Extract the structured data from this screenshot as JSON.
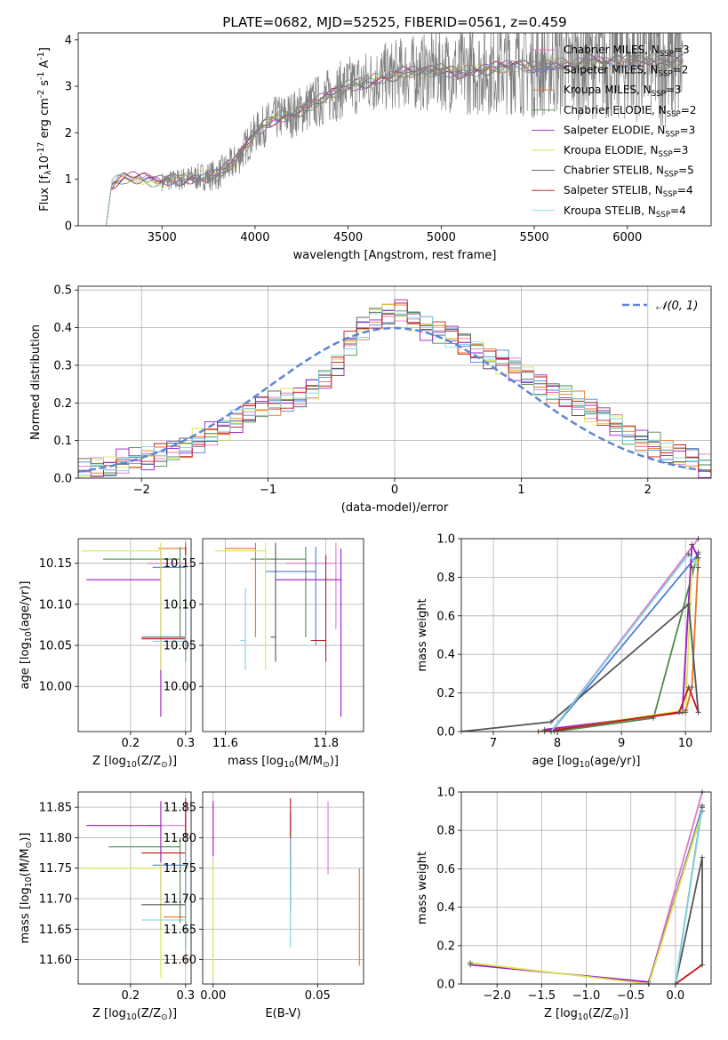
{
  "figure_title": "PLATE=0682, MJD=52525, FIBERID=0561, z=0.459",
  "colors": {
    "chabrier_miles": "#e377c2",
    "salpeter_miles": "#4f7bd6",
    "kroupa_miles": "#e8761f",
    "chabrier_elodie": "#4e8a4e",
    "salpeter_elodie": "#9b19c9",
    "kroupa_elodie": "#d8e84a",
    "chabrier_stelib": "#555555",
    "salpeter_stelib": "#c4161c",
    "kroupa_stelib": "#7fd3e6",
    "data": "#808080",
    "gaussian": "#5b86d6"
  },
  "chart_data": [
    {
      "type": "line",
      "id": "spectrum",
      "xlabel": "wavelength [Angstrom, rest frame]",
      "ylabel": "Flux [f$_\\lambda$10$^{-17}$ erg cm$^{-2}$ s$^{-1}$ A$^{-1}$]",
      "xlim": [
        3050,
        6450
      ],
      "ylim": [
        0,
        4.15
      ],
      "xticks": [
        3500,
        4000,
        4500,
        5000,
        5500,
        6000
      ],
      "yticks": [
        0,
        1,
        2,
        3,
        4
      ],
      "legend_position": "top-right",
      "legend": [
        "Chabrier MILES, N$_{SSP}$=3",
        "Salpeter MILES, N$_{SSP}$=2",
        "Kroupa MILES, N$_{SSP}$=3",
        "Chabrier ELODIE, N$_{SSP}$=2",
        "Salpeter ELODIE, N$_{SSP}$=3",
        "Kroupa ELODIE, N$_{SSP}$=3",
        "Chabrier STELIB, N$_{SSP}$=5",
        "Salpeter STELIB, N$_{SSP}$=4",
        "Kroupa STELIB, N$_{SSP}$=4"
      ],
      "model_continuum": {
        "x": [
          3200,
          3230,
          3300,
          3400,
          3500,
          3600,
          3700,
          3800,
          3900,
          4000,
          4100,
          4200,
          4300,
          4400,
          4500,
          4600,
          4700,
          4800,
          4900,
          5000,
          5100,
          5200,
          5300,
          5400,
          5500,
          5600,
          5700,
          5800,
          5900,
          6000,
          6100,
          6200,
          6300
        ],
        "y": [
          0,
          0.9,
          1.05,
          1.0,
          0.95,
          1.0,
          1.05,
          1.1,
          1.4,
          2.0,
          2.3,
          2.4,
          2.6,
          2.8,
          3.0,
          3.1,
          3.2,
          3.3,
          3.3,
          3.35,
          3.3,
          3.35,
          3.4,
          3.45,
          3.4,
          3.5,
          3.45,
          3.55,
          3.5,
          3.55,
          3.6,
          3.5,
          3.55
        ]
      },
      "data_start_x": 3500
    },
    {
      "type": "bar",
      "id": "residuals",
      "xlabel": "(data-model)/error",
      "ylabel": "Normed distribution",
      "xlim": [
        -2.5,
        2.5
      ],
      "ylim": [
        0,
        0.51
      ],
      "xticks": [
        -2,
        -1,
        0,
        1,
        2
      ],
      "yticks": [
        0.0,
        0.1,
        0.2,
        0.3,
        0.4,
        0.5
      ],
      "legend_position": "top-right",
      "gaussian_label": "$\\mathcal{N}(0, 1)$",
      "bin_edges": [
        -2.5,
        -2.4,
        -2.3,
        -2.2,
        -2.1,
        -2.0,
        -1.9,
        -1.8,
        -1.7,
        -1.6,
        -1.5,
        -1.4,
        -1.3,
        -1.2,
        -1.1,
        -1.0,
        -0.9,
        -0.8,
        -0.7,
        -0.6,
        -0.5,
        -0.4,
        -0.3,
        -0.2,
        -0.1,
        0.0,
        0.1,
        0.2,
        0.3,
        0.4,
        0.5,
        0.6,
        0.7,
        0.8,
        0.9,
        1.0,
        1.1,
        1.2,
        1.3,
        1.4,
        1.5,
        1.6,
        1.7,
        1.8,
        1.9,
        2.0,
        2.1,
        2.2,
        2.3,
        2.4,
        2.5
      ],
      "histogram": [
        0.02,
        0.025,
        0.03,
        0.045,
        0.05,
        0.05,
        0.06,
        0.07,
        0.08,
        0.1,
        0.12,
        0.13,
        0.15,
        0.17,
        0.19,
        0.2,
        0.21,
        0.22,
        0.24,
        0.26,
        0.3,
        0.36,
        0.4,
        0.43,
        0.44,
        0.45,
        0.42,
        0.4,
        0.39,
        0.38,
        0.36,
        0.34,
        0.32,
        0.31,
        0.29,
        0.27,
        0.25,
        0.23,
        0.22,
        0.2,
        0.18,
        0.16,
        0.14,
        0.12,
        0.1,
        0.09,
        0.07,
        0.06,
        0.05,
        0.03
      ]
    },
    {
      "type": "scatter",
      "id": "z_vs_age",
      "xlabel": "Z [log$_{10}$($Z/Z_\\odot$)]",
      "ylabel": "age  [log$_{10}$($age/yr$)]",
      "xlim": [
        0.105,
        0.31
      ],
      "ylim": [
        9.945,
        10.18
      ],
      "xticks": [
        0.2,
        0.3
      ],
      "yticks": [
        10.0,
        10.05,
        10.1,
        10.15
      ],
      "points": [
        {
          "x": 0.3,
          "y": 10.15,
          "x_lo": 0.23,
          "y_lo": 10.07,
          "y_hi": 10.175,
          "model": "chabrier_miles"
        },
        {
          "x": 0.3,
          "y": 10.145,
          "x_lo": 0.24,
          "y_lo": 10.05,
          "y_hi": 10.175,
          "model": "salpeter_miles"
        },
        {
          "x": 0.3,
          "y": 10.168,
          "x_lo": 0.25,
          "y_lo": 10.06,
          "y_hi": 10.175,
          "model": "kroupa_miles"
        },
        {
          "x": 0.29,
          "y": 10.155,
          "x_lo": 0.15,
          "y_lo": 10.06,
          "y_hi": 10.17,
          "model": "chabrier_elodie"
        },
        {
          "x": 0.255,
          "y": 10.13,
          "x_lo": 0.12,
          "y_lo": 9.963,
          "y_hi": 10.168,
          "model": "salpeter_elodie"
        },
        {
          "x": 0.255,
          "y": 10.165,
          "x_lo": 0.11,
          "y_lo": 10.02,
          "y_hi": 10.175,
          "model": "kroupa_elodie"
        },
        {
          "x": 0.3,
          "y": 10.06,
          "x_lo": 0.22,
          "y_lo": 10.03,
          "y_hi": 10.16,
          "model": "chabrier_stelib"
        },
        {
          "x": 0.3,
          "y": 10.058,
          "x_lo": 0.22,
          "y_lo": 10.04,
          "y_hi": 10.17,
          "model": "salpeter_stelib"
        },
        {
          "x": 0.3,
          "y": 10.055,
          "x_lo": 0.24,
          "y_lo": 10.03,
          "y_hi": 10.16,
          "model": "kroupa_stelib"
        }
      ]
    },
    {
      "type": "scatter",
      "id": "mass_vs_age",
      "xlabel": "mass [log$_{10}$($M/M_\\odot$)]",
      "ylabel": "",
      "xlim": [
        11.555,
        11.875
      ],
      "ylim": [
        9.945,
        10.18
      ],
      "xticks": [
        11.6,
        11.8
      ],
      "yticks": [
        10.0,
        10.05,
        10.1,
        10.15
      ],
      "points": [
        {
          "x": 11.82,
          "y": 10.15,
          "x_lo": 11.72,
          "y_lo": 10.07,
          "y_hi": 10.175,
          "model": "chabrier_miles"
        },
        {
          "x": 11.78,
          "y": 10.14,
          "x_lo": 11.68,
          "y_lo": 10.05,
          "y_hi": 10.17,
          "model": "salpeter_miles"
        },
        {
          "x": 11.66,
          "y": 10.168,
          "x_lo": 11.6,
          "y_lo": 10.06,
          "y_hi": 10.175,
          "model": "kroupa_miles"
        },
        {
          "x": 11.76,
          "y": 10.155,
          "x_lo": 11.65,
          "y_lo": 10.06,
          "y_hi": 10.17,
          "model": "chabrier_elodie"
        },
        {
          "x": 11.83,
          "y": 10.13,
          "x_lo": 11.7,
          "y_lo": 9.963,
          "y_hi": 10.168,
          "model": "salpeter_elodie"
        },
        {
          "x": 11.68,
          "y": 10.165,
          "x_lo": 11.58,
          "y_lo": 10.02,
          "y_hi": 10.175,
          "model": "kroupa_elodie"
        },
        {
          "x": 11.7,
          "y": 10.06,
          "x_lo": 11.69,
          "y_lo": 10.03,
          "y_hi": 10.175,
          "model": "chabrier_stelib"
        },
        {
          "x": 11.8,
          "y": 10.056,
          "x_lo": 11.77,
          "y_lo": 10.03,
          "y_hi": 10.16,
          "model": "salpeter_stelib"
        },
        {
          "x": 11.64,
          "y": 10.056,
          "x_lo": 11.63,
          "y_lo": 10.02,
          "y_hi": 10.12,
          "model": "kroupa_stelib"
        }
      ]
    },
    {
      "type": "line",
      "id": "age_mass_weight",
      "xlabel": "age  [log$_{10}$($age/yr$)]",
      "ylabel": "mass weight",
      "xlim": [
        6.5,
        10.4
      ],
      "ylim": [
        0,
        1
      ],
      "xticks": [
        7,
        8,
        9,
        10
      ],
      "yticks": [
        0.0,
        0.2,
        0.4,
        0.6,
        0.8,
        1.0
      ],
      "series": [
        {
          "model": "chabrier_miles",
          "x": [
            7.9,
            10.2
          ],
          "y": [
            0.0,
            1.0
          ]
        },
        {
          "model": "salpeter_miles",
          "x": [
            7.9,
            10.2
          ],
          "y": [
            0.0,
            0.92
          ]
        },
        {
          "model": "kroupa_miles",
          "x": [
            7.7,
            10.0,
            10.1,
            10.2
          ],
          "y": [
            0.0,
            0.1,
            0.23,
            0.9
          ]
        },
        {
          "model": "chabrier_elodie",
          "x": [
            7.95,
            9.5,
            10.2
          ],
          "y": [
            0.0,
            0.07,
            0.93
          ]
        },
        {
          "model": "salpeter_elodie",
          "x": [
            7.8,
            9.95,
            10.1,
            10.2
          ],
          "y": [
            0.01,
            0.1,
            0.97,
            0.9
          ]
        },
        {
          "model": "kroupa_elodie",
          "x": [
            7.8,
            10.0,
            10.1,
            10.2
          ],
          "y": [
            0.0,
            0.11,
            0.85,
            0.9
          ]
        },
        {
          "model": "chabrier_stelib",
          "x": [
            6.5,
            7.9,
            10.05,
            10.2
          ],
          "y": [
            0.0,
            0.05,
            0.66,
            0.1
          ]
        },
        {
          "model": "salpeter_stelib",
          "x": [
            7.8,
            9.9,
            10.05,
            10.2
          ],
          "y": [
            0.0,
            0.1,
            0.23,
            0.1
          ]
        },
        {
          "model": "kroupa_stelib",
          "x": [
            7.9,
            10.05,
            10.2
          ],
          "y": [
            0.0,
            0.92,
            0.85
          ]
        }
      ]
    },
    {
      "type": "scatter",
      "id": "z_vs_mass",
      "xlabel": "Z [log$_{10}$($Z/Z_\\odot$)]",
      "ylabel": "mass [log$_{10}$($M/M_\\odot$)]",
      "xlim": [
        0.105,
        0.31
      ],
      "ylim": [
        11.56,
        11.875
      ],
      "xticks": [
        0.2,
        0.3
      ],
      "yticks": [
        11.6,
        11.65,
        11.7,
        11.75,
        11.8,
        11.85
      ],
      "points": [
        {
          "x": 0.3,
          "y": 11.82,
          "x_lo": 0.235,
          "y_lo": 11.72,
          "y_hi": 11.86,
          "model": "chabrier_miles"
        },
        {
          "x": 0.3,
          "y": 11.755,
          "x_lo": 0.24,
          "y_lo": 11.72,
          "y_hi": 11.79,
          "model": "salpeter_miles"
        },
        {
          "x": 0.3,
          "y": 11.67,
          "x_lo": 0.26,
          "y_lo": 11.59,
          "y_hi": 11.745,
          "model": "kroupa_miles"
        },
        {
          "x": 0.29,
          "y": 11.785,
          "x_lo": 0.16,
          "y_lo": 11.66,
          "y_hi": 11.8,
          "model": "chabrier_elodie"
        },
        {
          "x": 0.255,
          "y": 11.82,
          "x_lo": 0.12,
          "y_lo": 11.65,
          "y_hi": 11.86,
          "model": "salpeter_elodie"
        },
        {
          "x": 0.255,
          "y": 11.75,
          "x_lo": 0.11,
          "y_lo": 11.57,
          "y_hi": 11.76,
          "model": "kroupa_elodie"
        },
        {
          "x": 0.3,
          "y": 11.69,
          "x_lo": 0.22,
          "y_lo": 11.62,
          "y_hi": 11.84,
          "model": "chabrier_stelib"
        },
        {
          "x": 0.3,
          "y": 11.775,
          "x_lo": 0.22,
          "y_lo": 11.68,
          "y_hi": 11.865,
          "model": "salpeter_stelib"
        },
        {
          "x": 0.3,
          "y": 11.665,
          "x_lo": 0.22,
          "y_lo": 11.61,
          "y_hi": 11.8,
          "model": "kroupa_stelib"
        }
      ]
    },
    {
      "type": "scatter",
      "id": "ebv_vs_mass",
      "xlabel": "E(B-V)",
      "ylabel": "",
      "xlim": [
        -0.005,
        0.072
      ],
      "ylim": [
        11.56,
        11.875
      ],
      "xticks": [
        0.0,
        0.05
      ],
      "yticks": [
        11.6,
        11.65,
        11.7,
        11.75,
        11.8,
        11.85
      ],
      "points": [
        {
          "x": 0.055,
          "y": 11.82,
          "y_lo": 11.74,
          "y_hi": 11.86,
          "model": "chabrier_miles"
        },
        {
          "x": 0.037,
          "y": 11.755,
          "y_lo": 11.72,
          "y_hi": 11.79,
          "model": "salpeter_miles"
        },
        {
          "x": 0.07,
          "y": 11.67,
          "y_lo": 11.59,
          "y_hi": 11.75,
          "model": "kroupa_miles"
        },
        {
          "x": 0.037,
          "y": 11.785,
          "y_lo": 11.76,
          "y_hi": 11.8,
          "model": "chabrier_elodie"
        },
        {
          "x": 0.0,
          "y": 11.82,
          "y_lo": 11.77,
          "y_hi": 11.86,
          "model": "salpeter_elodie"
        },
        {
          "x": 0.0,
          "y": 11.7,
          "y_lo": 11.57,
          "y_hi": 11.76,
          "model": "kroupa_elodie"
        },
        {
          "x": 0.037,
          "y": 11.69,
          "y_lo": 11.68,
          "y_hi": 11.84,
          "model": "chabrier_stelib"
        },
        {
          "x": 0.037,
          "y": 11.8,
          "y_lo": 11.77,
          "y_hi": 11.865,
          "model": "salpeter_stelib"
        },
        {
          "x": 0.037,
          "y": 11.67,
          "y_lo": 11.62,
          "y_hi": 11.8,
          "model": "kroupa_stelib"
        }
      ]
    },
    {
      "type": "line",
      "id": "z_mass_weight",
      "xlabel": "Z [log$_{10}$($Z/Z_\\odot$)]",
      "ylabel": "mass weight",
      "xlim": [
        -2.4,
        0.4
      ],
      "ylim": [
        0,
        1
      ],
      "xticks": [
        -2.0,
        -1.5,
        -1.0,
        -0.5,
        0.0
      ],
      "yticks": [
        0.0,
        0.2,
        0.4,
        0.6,
        0.8,
        1.0
      ],
      "series": [
        {
          "model": "chabrier_miles",
          "x": [
            -0.3,
            0.3
          ],
          "y": [
            0.0,
            1.0
          ]
        },
        {
          "model": "salpeter_miles",
          "x": [
            -0.3,
            0.3
          ],
          "y": [
            0.0,
            0.92
          ]
        },
        {
          "model": "kroupa_miles",
          "x": [
            -0.3,
            0.3
          ],
          "y": [
            0.0,
            0.9
          ]
        },
        {
          "model": "chabrier_elodie",
          "x": [
            0.0,
            0.3
          ],
          "y": [
            0.0,
            0.93
          ]
        },
        {
          "model": "salpeter_elodie",
          "x": [
            -2.3,
            -0.3,
            0.3
          ],
          "y": [
            0.1,
            0.01,
            0.9
          ]
        },
        {
          "model": "kroupa_elodie",
          "x": [
            -2.3,
            -0.3,
            0.3
          ],
          "y": [
            0.11,
            0.0,
            0.9
          ]
        },
        {
          "model": "chabrier_stelib",
          "x": [
            0.0,
            0.3,
            0.3
          ],
          "y": [
            0.0,
            0.66,
            0.1
          ]
        },
        {
          "model": "salpeter_stelib",
          "x": [
            0.0,
            0.3
          ],
          "y": [
            0.0,
            0.1
          ]
        },
        {
          "model": "kroupa_stelib",
          "x": [
            0.0,
            0.3
          ],
          "y": [
            0.0,
            0.92
          ]
        }
      ]
    }
  ]
}
